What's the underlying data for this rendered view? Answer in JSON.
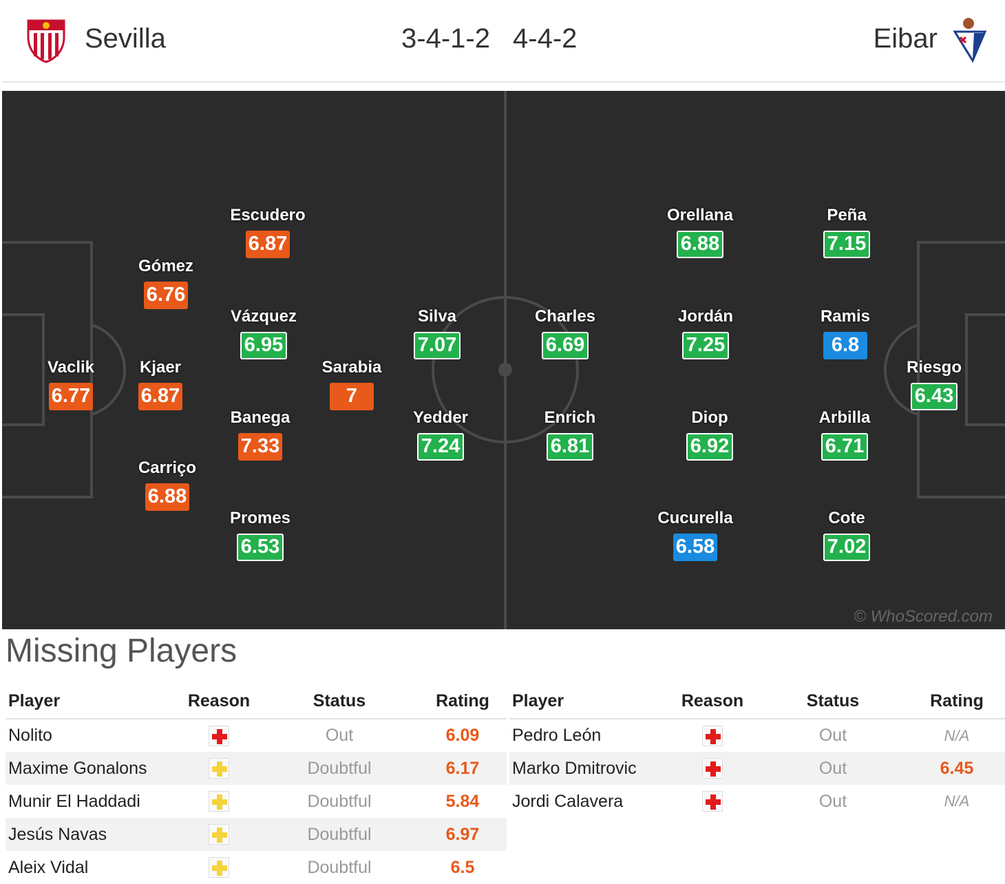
{
  "header": {
    "home": {
      "name": "Sevilla",
      "formation": "3-4-1-2"
    },
    "away": {
      "name": "Eibar",
      "formation": "4-4-2"
    }
  },
  "pitch": {
    "watermark": "© WhoScored.com",
    "colors": {
      "orange": "#e8591a",
      "green": "#23b14d",
      "blue": "#1a8be0"
    },
    "home_players": [
      {
        "name": "Vaclik",
        "rating": "6.77",
        "color": "orange"
      },
      {
        "name": "Gómez",
        "rating": "6.76",
        "color": "orange"
      },
      {
        "name": "Kjaer",
        "rating": "6.87",
        "color": "orange"
      },
      {
        "name": "Carriço",
        "rating": "6.88",
        "color": "orange"
      },
      {
        "name": "Escudero",
        "rating": "6.87",
        "color": "orange"
      },
      {
        "name": "Vázquez",
        "rating": "6.95",
        "color": "green"
      },
      {
        "name": "Banega",
        "rating": "7.33",
        "color": "orange"
      },
      {
        "name": "Promes",
        "rating": "6.53",
        "color": "green"
      },
      {
        "name": "Sarabia",
        "rating": "7",
        "color": "orange"
      },
      {
        "name": "Silva",
        "rating": "7.07",
        "color": "green"
      },
      {
        "name": "Yedder",
        "rating": "7.24",
        "color": "green"
      }
    ],
    "away_players": [
      {
        "name": "Charles",
        "rating": "6.69",
        "color": "green"
      },
      {
        "name": "Enrich",
        "rating": "6.81",
        "color": "green"
      },
      {
        "name": "Orellana",
        "rating": "6.88",
        "color": "green"
      },
      {
        "name": "Jordán",
        "rating": "7.25",
        "color": "green"
      },
      {
        "name": "Diop",
        "rating": "6.92",
        "color": "green"
      },
      {
        "name": "Cucurella",
        "rating": "6.58",
        "color": "blue"
      },
      {
        "name": "Peña",
        "rating": "7.15",
        "color": "green"
      },
      {
        "name": "Ramis",
        "rating": "6.8",
        "color": "blue"
      },
      {
        "name": "Arbilla",
        "rating": "6.71",
        "color": "green"
      },
      {
        "name": "Cote",
        "rating": "7.02",
        "color": "green"
      },
      {
        "name": "Riesgo",
        "rating": "6.43",
        "color": "green"
      }
    ]
  },
  "missing": {
    "title": "Missing Players",
    "headers": [
      "Player",
      "Reason",
      "Status",
      "Rating"
    ],
    "home": [
      {
        "player": "Nolito",
        "reason": "injury",
        "status": "Out",
        "rating": "6.09"
      },
      {
        "player": "Maxime Gonalons",
        "reason": "doubt",
        "status": "Doubtful",
        "rating": "6.17"
      },
      {
        "player": "Munir El Haddadi",
        "reason": "doubt",
        "status": "Doubtful",
        "rating": "5.84"
      },
      {
        "player": "Jesús Navas",
        "reason": "doubt",
        "status": "Doubtful",
        "rating": "6.97"
      },
      {
        "player": "Aleix Vidal",
        "reason": "doubt",
        "status": "Doubtful",
        "rating": "6.5"
      }
    ],
    "away": [
      {
        "player": "Pedro León",
        "reason": "injury",
        "status": "Out",
        "rating": "N/A"
      },
      {
        "player": "Marko Dmitrovic",
        "reason": "injury",
        "status": "Out",
        "rating": "6.45"
      },
      {
        "player": "Jordi Calavera",
        "reason": "injury",
        "status": "Out",
        "rating": "N/A"
      }
    ]
  }
}
